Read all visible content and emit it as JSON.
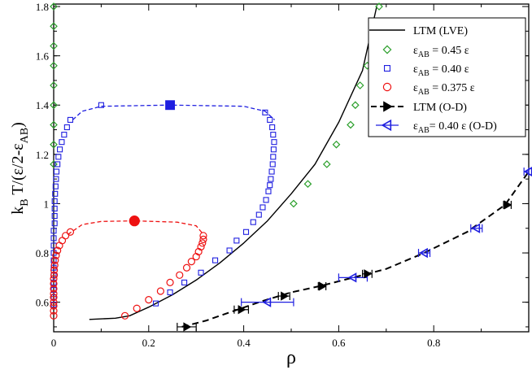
{
  "chart_data": {
    "type": "scatter",
    "title": "",
    "xlabel": "ρ",
    "ylabel": {
      "main": "k",
      "sub1": "B",
      "mid": " T/(ε/2-ε",
      "sub2": "AB",
      "end": ")"
    },
    "xlim": [
      0,
      1.0
    ],
    "ylim": [
      0.48,
      1.81
    ],
    "xticks": [
      {
        "v": 0,
        "label": "0"
      },
      {
        "v": 0.2,
        "label": "0.2"
      },
      {
        "v": 0.4,
        "label": "0.4"
      },
      {
        "v": 0.6,
        "label": "0.6"
      },
      {
        "v": 0.8,
        "label": "0.8"
      }
    ],
    "yticks": [
      {
        "v": 0.6,
        "label": "0.6"
      },
      {
        "v": 0.8,
        "label": "0.8"
      },
      {
        "v": 1.0,
        "label": "1"
      },
      {
        "v": 1.2,
        "label": "1.2"
      },
      {
        "v": 1.4,
        "label": "1.4"
      },
      {
        "v": 1.6,
        "label": "1.6"
      },
      {
        "v": 1.8,
        "label": "1.8"
      }
    ],
    "legend_position": "top-right",
    "legend": [
      {
        "key": "ltm_lve",
        "pre": "LTM (LVE)",
        "sub": "",
        "post": ""
      },
      {
        "key": "e045",
        "pre": "ε",
        "sub": "AB",
        "post": " = 0.45 ε"
      },
      {
        "key": "e040",
        "pre": "ε",
        "sub": "AB",
        "post": " = 0.40 ε"
      },
      {
        "key": "e0375",
        "pre": "ε",
        "sub": "AB",
        "post": " = 0.375 ε"
      },
      {
        "key": "ltm_od",
        "pre": "LTM (O-D)",
        "sub": "",
        "post": ""
      },
      {
        "key": "e040_od",
        "pre": "ε",
        "sub": "AB",
        "post": "= 0.40 ε (O-D)"
      }
    ],
    "colors": {
      "black": "#000000",
      "green": "#2ca02c",
      "blue": "#1f1fe0",
      "red": "#ee1111"
    },
    "series": [
      {
        "name": "LTM (LVE)",
        "kind": "line",
        "color": "#000000",
        "dash": "none",
        "points": [
          [
            0.075,
            0.53
          ],
          [
            0.13,
            0.535
          ],
          [
            0.16,
            0.545
          ],
          [
            0.2,
            0.58
          ],
          [
            0.25,
            0.63
          ],
          [
            0.3,
            0.69
          ],
          [
            0.35,
            0.76
          ],
          [
            0.4,
            0.84
          ],
          [
            0.45,
            0.93
          ],
          [
            0.5,
            1.04
          ],
          [
            0.55,
            1.16
          ],
          [
            0.6,
            1.33
          ],
          [
            0.65,
            1.54
          ],
          [
            0.68,
            1.8
          ]
        ]
      },
      {
        "name": "LTM (O-D)",
        "kind": "line",
        "color": "#000000",
        "dash": "8,5",
        "points": [
          [
            0.27,
            0.5
          ],
          [
            0.32,
            0.525
          ],
          [
            0.38,
            0.565
          ],
          [
            0.44,
            0.605
          ],
          [
            0.5,
            0.64
          ],
          [
            0.56,
            0.665
          ],
          [
            0.62,
            0.695
          ],
          [
            0.7,
            0.735
          ],
          [
            0.78,
            0.8
          ],
          [
            0.87,
            0.885
          ],
          [
            0.95,
            0.995
          ],
          [
            1.0,
            1.13
          ]
        ]
      },
      {
        "name": "ε_AB = 0.40 ε coexistence",
        "kind": "line",
        "color": "#1f1fe0",
        "dash": "5,3",
        "points": [
          [
            0.04,
            1.34
          ],
          [
            0.06,
            1.375
          ],
          [
            0.1,
            1.395
          ],
          [
            0.245,
            1.4
          ],
          [
            0.4,
            1.395
          ],
          [
            0.445,
            1.375
          ],
          [
            0.465,
            1.34
          ]
        ]
      },
      {
        "name": "ε_AB = 0.375 ε coexistence",
        "kind": "line",
        "color": "#ee1111",
        "dash": "5,3",
        "points": [
          [
            0.03,
            0.875
          ],
          [
            0.06,
            0.915
          ],
          [
            0.1,
            0.928
          ],
          [
            0.17,
            0.93
          ],
          [
            0.26,
            0.925
          ],
          [
            0.3,
            0.91
          ],
          [
            0.315,
            0.875
          ]
        ]
      },
      {
        "name": "ε_AB = 0.45 ε",
        "marker": "diamond",
        "color": "#2ca02c",
        "points": [
          [
            0.0,
            1.8
          ],
          [
            0.0,
            1.72
          ],
          [
            0.0,
            1.64
          ],
          [
            0.0,
            1.56
          ],
          [
            0.0,
            1.48
          ],
          [
            0.0,
            1.4
          ],
          [
            0.0,
            1.32
          ],
          [
            0.0,
            1.24
          ],
          [
            0.0,
            1.16
          ],
          [
            0.505,
            1.0
          ],
          [
            0.535,
            1.08
          ],
          [
            0.575,
            1.16
          ],
          [
            0.595,
            1.24
          ],
          [
            0.625,
            1.32
          ],
          [
            0.635,
            1.4
          ],
          [
            0.645,
            1.48
          ],
          [
            0.66,
            1.56
          ],
          [
            0.67,
            1.64
          ],
          [
            0.675,
            1.72
          ],
          [
            0.685,
            1.8
          ]
        ]
      },
      {
        "name": "ε_AB = 0.40 ε",
        "marker": "square",
        "color": "#1f1fe0",
        "points": [
          [
            0.0,
            0.59
          ],
          [
            0.0,
            0.62
          ],
          [
            0.0,
            0.65
          ],
          [
            0.0,
            0.68
          ],
          [
            0.0,
            0.71
          ],
          [
            0.0,
            0.74
          ],
          [
            0.0,
            0.77
          ],
          [
            0.0,
            0.8
          ],
          [
            0.0,
            0.83
          ],
          [
            0.0,
            0.86
          ],
          [
            0.0,
            0.89
          ],
          [
            0.002,
            0.92
          ],
          [
            0.002,
            0.95
          ],
          [
            0.002,
            0.98
          ],
          [
            0.002,
            1.01
          ],
          [
            0.003,
            1.04
          ],
          [
            0.004,
            1.07
          ],
          [
            0.005,
            1.1
          ],
          [
            0.006,
            1.13
          ],
          [
            0.008,
            1.16
          ],
          [
            0.01,
            1.19
          ],
          [
            0.013,
            1.22
          ],
          [
            0.017,
            1.25
          ],
          [
            0.022,
            1.28
          ],
          [
            0.028,
            1.31
          ],
          [
            0.035,
            1.34
          ],
          [
            0.1,
            1.4
          ],
          [
            0.215,
            0.595
          ],
          [
            0.245,
            0.64
          ],
          [
            0.275,
            0.68
          ],
          [
            0.31,
            0.72
          ],
          [
            0.34,
            0.77
          ],
          [
            0.37,
            0.81
          ],
          [
            0.385,
            0.85
          ],
          [
            0.405,
            0.885
          ],
          [
            0.42,
            0.925
          ],
          [
            0.432,
            0.955
          ],
          [
            0.44,
            0.985
          ],
          [
            0.447,
            1.015
          ],
          [
            0.452,
            1.05
          ],
          [
            0.455,
            1.075
          ],
          [
            0.457,
            1.1
          ],
          [
            0.459,
            1.13
          ],
          [
            0.461,
            1.16
          ],
          [
            0.462,
            1.19
          ],
          [
            0.463,
            1.22
          ],
          [
            0.464,
            1.25
          ],
          [
            0.462,
            1.28
          ],
          [
            0.46,
            1.31
          ],
          [
            0.455,
            1.34
          ],
          [
            0.445,
            1.37
          ]
        ]
      },
      {
        "name": "ε_AB = 0.375 ε",
        "marker": "circle",
        "color": "#ee1111",
        "points": [
          [
            0.0,
            0.545
          ],
          [
            0.0,
            0.565
          ],
          [
            0.0,
            0.585
          ],
          [
            0.0,
            0.6
          ],
          [
            0.0,
            0.62
          ],
          [
            0.0,
            0.635
          ],
          [
            0.0,
            0.655
          ],
          [
            0.0,
            0.675
          ],
          [
            0.0,
            0.695
          ],
          [
            0.001,
            0.71
          ],
          [
            0.001,
            0.73
          ],
          [
            0.002,
            0.75
          ],
          [
            0.003,
            0.77
          ],
          [
            0.005,
            0.79
          ],
          [
            0.008,
            0.81
          ],
          [
            0.012,
            0.83
          ],
          [
            0.018,
            0.85
          ],
          [
            0.025,
            0.87
          ],
          [
            0.035,
            0.885
          ],
          [
            0.15,
            0.545
          ],
          [
            0.175,
            0.575
          ],
          [
            0.2,
            0.61
          ],
          [
            0.225,
            0.645
          ],
          [
            0.245,
            0.68
          ],
          [
            0.265,
            0.71
          ],
          [
            0.28,
            0.74
          ],
          [
            0.29,
            0.765
          ],
          [
            0.3,
            0.785
          ],
          [
            0.305,
            0.805
          ],
          [
            0.31,
            0.825
          ],
          [
            0.313,
            0.84
          ],
          [
            0.315,
            0.855
          ],
          [
            0.315,
            0.87
          ]
        ]
      },
      {
        "name": "LTM (O-D) markers",
        "marker": "tri-right",
        "color": "#000000",
        "points": [
          [
            0.28,
            0.5
          ],
          [
            0.395,
            0.57
          ],
          [
            0.485,
            0.625
          ],
          [
            0.565,
            0.665
          ],
          [
            0.66,
            0.715
          ],
          [
            0.955,
            0.995
          ]
        ]
      },
      {
        "name": "ε_AB = 0.40 ε (O-D)",
        "marker": "tri-left",
        "color": "#1f1fe0",
        "points": [
          [
            0.45,
            0.6
          ],
          [
            0.63,
            0.7
          ],
          [
            0.78,
            0.8
          ],
          [
            0.89,
            0.9
          ],
          [
            1.0,
            1.13
          ]
        ]
      }
    ],
    "error_bars": [
      {
        "x": 0.28,
        "y": 0.5,
        "xerr": 0.02,
        "color": "#000000"
      },
      {
        "x": 0.395,
        "y": 0.57,
        "xerr": 0.015,
        "color": "#000000"
      },
      {
        "x": 0.485,
        "y": 0.625,
        "xerr": 0.012,
        "color": "#000000"
      },
      {
        "x": 0.565,
        "y": 0.665,
        "xerr": 0.008,
        "color": "#000000"
      },
      {
        "x": 0.66,
        "y": 0.715,
        "xerr": 0.01,
        "color": "#000000"
      },
      {
        "x": 0.955,
        "y": 0.995,
        "xerr": 0.008,
        "color": "#000000"
      },
      {
        "x": 0.45,
        "y": 0.6,
        "xerr": 0.055,
        "color": "#1f1fe0"
      },
      {
        "x": 0.63,
        "y": 0.7,
        "xerr": 0.03,
        "color": "#1f1fe0"
      },
      {
        "x": 0.78,
        "y": 0.8,
        "xerr": 0.012,
        "color": "#1f1fe0"
      },
      {
        "x": 0.89,
        "y": 0.9,
        "xerr": 0.012,
        "color": "#1f1fe0"
      },
      {
        "x": 1.0,
        "y": 1.13,
        "xerr": 0.01,
        "color": "#1f1fe0"
      }
    ],
    "critical_points": [
      {
        "name": "ε_AB = 0.40 ε critical point",
        "marker": "square",
        "x": 0.245,
        "y": 1.4,
        "color": "#1f1fe0"
      },
      {
        "name": "ε_AB = 0.375 ε critical point",
        "marker": "circle",
        "x": 0.17,
        "y": 0.93,
        "color": "#ee1111"
      }
    ]
  }
}
